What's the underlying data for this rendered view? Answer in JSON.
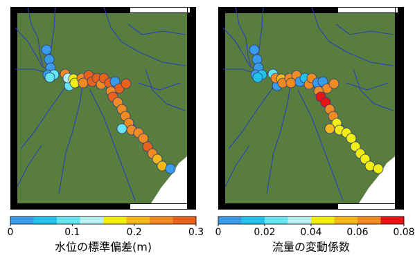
{
  "panels": [
    {
      "colorbar": {
        "label": "水位の標準偏差(m)",
        "ticks": [
          0,
          0.1,
          0.2,
          0.3
        ],
        "colors": [
          "#3a9be8",
          "#22c2ea",
          "#66e4f0",
          "#b8f2f2",
          "#f2ee10",
          "#f6b818",
          "#f08a22",
          "#e8621c"
        ]
      },
      "points": [
        0.02,
        0.03,
        0.02,
        0.03,
        0.08,
        0.1,
        0.26,
        0.1,
        0.13,
        0.17,
        0.18,
        0.26,
        0.27,
        0.24,
        0.28,
        0.27,
        0.26,
        0.27,
        0.28,
        0.02,
        0.27,
        0.27,
        0.26,
        0.27,
        0.26,
        0.25,
        0.26,
        0.24,
        0.08,
        0.24,
        0.25,
        0.24,
        0.27,
        0.25,
        0.22,
        0.19,
        0.02
      ]
    },
    {
      "colorbar": {
        "label": "流量の変動係数",
        "ticks": [
          0,
          0.02,
          0.04,
          0.06,
          0.08
        ],
        "colors": [
          "#3a9be8",
          "#22c2ea",
          "#66e4f0",
          "#b8f2f2",
          "#f2ee10",
          "#f6b818",
          "#f08a22",
          "#e81414"
        ]
      },
      "points": [
        0.005,
        0.006,
        0.005,
        0.006,
        0.018,
        0.015,
        0.02,
        0.006,
        0.065,
        0.05,
        0.06,
        0.065,
        0.06,
        0.06,
        0.008,
        0.012,
        0.06,
        0.065,
        0.006,
        0.006,
        0.06,
        0.065,
        0.062,
        0.078,
        0.07,
        0.065,
        0.06,
        0.045,
        0.05,
        0.045,
        0.045,
        0.045,
        0.045,
        0.045,
        0.045,
        0.045,
        0.045
      ]
    }
  ]
}
